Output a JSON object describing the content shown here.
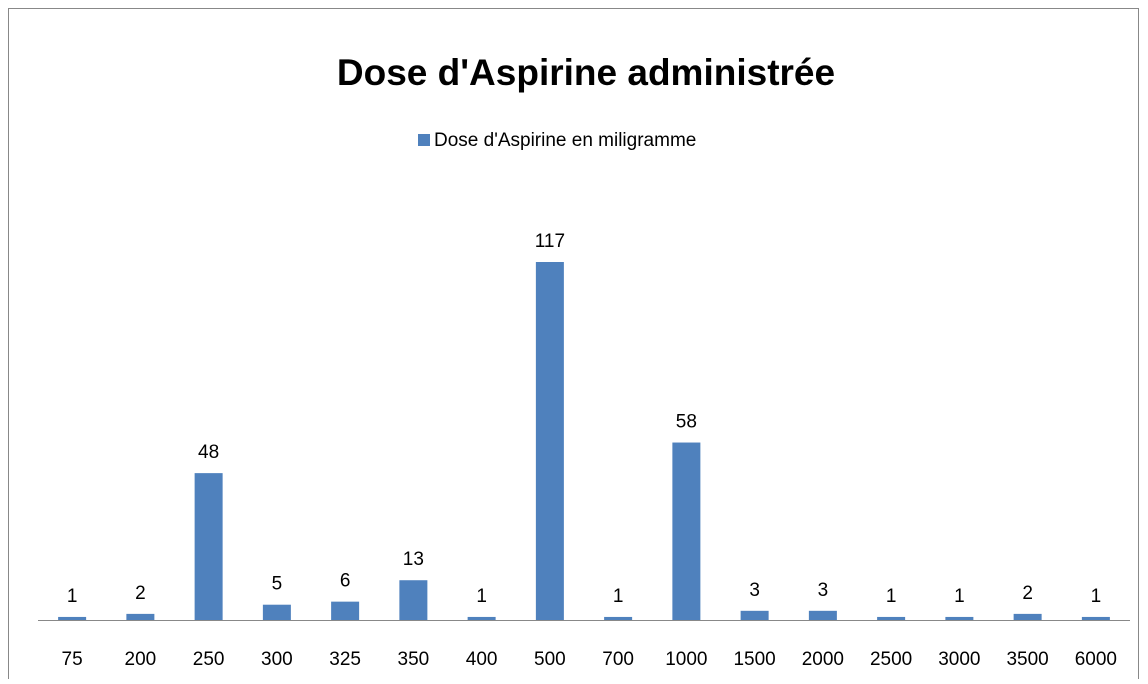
{
  "chart_data": {
    "type": "bar",
    "title": "Dose d'Aspirine administrée",
    "categories": [
      "75",
      "200",
      "250",
      "300",
      "325",
      "350",
      "400",
      "500",
      "700",
      "1000",
      "1500",
      "2000",
      "2500",
      "3000",
      "3500",
      "6000"
    ],
    "series": [
      {
        "name": "Dose d'Aspirine en miligramme",
        "color": "#4f81bd",
        "values": [
          1,
          2,
          48,
          5,
          6,
          13,
          1,
          117,
          1,
          58,
          3,
          3,
          1,
          1,
          2,
          1
        ]
      }
    ],
    "legend": "top"
  }
}
